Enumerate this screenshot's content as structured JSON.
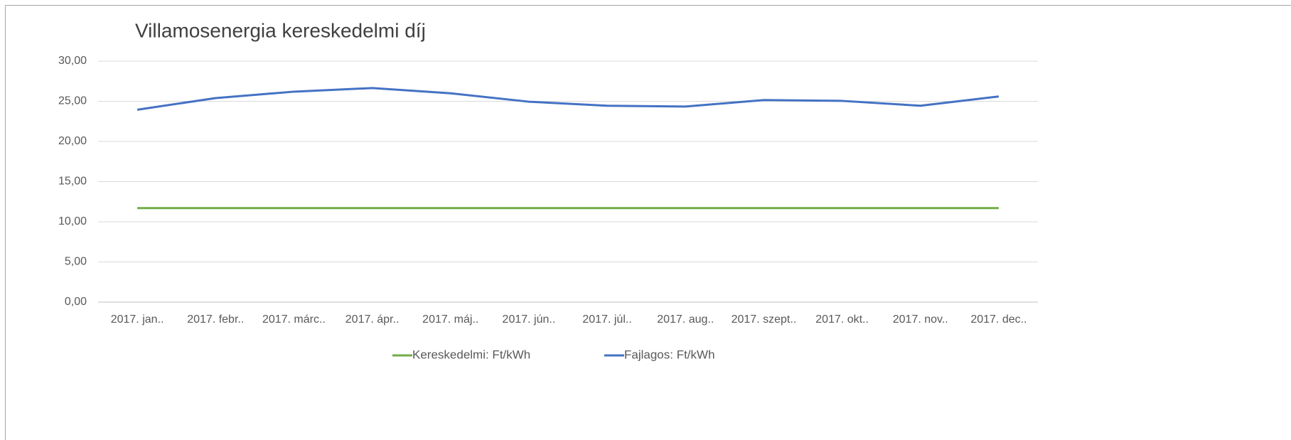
{
  "chart_data": {
    "type": "line",
    "title": "Villamosenergia kereskedelmi díj",
    "categories": [
      "2017. jan..",
      "2017. febr..",
      "2017. márc..",
      "2017. ápr..",
      "2017. máj..",
      "2017. jún..",
      "2017. júl..",
      "2017. aug..",
      "2017. szept..",
      "2017. okt..",
      "2017. nov..",
      "2017. dec.."
    ],
    "series": [
      {
        "name": "Kereskedelmi: Ft/kWh",
        "color": "#70ad47",
        "values": [
          11.7,
          11.7,
          11.7,
          11.7,
          11.7,
          11.7,
          11.7,
          11.7,
          11.7,
          11.7,
          11.7,
          11.7
        ]
      },
      {
        "name": "Fajlagos: Ft/kWh",
        "color": "#4472c4",
        "values": [
          23.95,
          25.4,
          26.2,
          26.65,
          26.0,
          24.95,
          24.45,
          24.35,
          25.15,
          25.05,
          24.45,
          25.6
        ]
      }
    ],
    "ylim": [
      0,
      30
    ],
    "yticks": [
      {
        "value": 0,
        "label": "0,00"
      },
      {
        "value": 5,
        "label": "5,00"
      },
      {
        "value": 10,
        "label": "10,00"
      },
      {
        "value": 15,
        "label": "15,00"
      },
      {
        "value": 20,
        "label": "20,00"
      },
      {
        "value": 25,
        "label": "25,00"
      },
      {
        "value": 30,
        "label": "30,00"
      }
    ],
    "grid": true,
    "legend": "bottom"
  }
}
